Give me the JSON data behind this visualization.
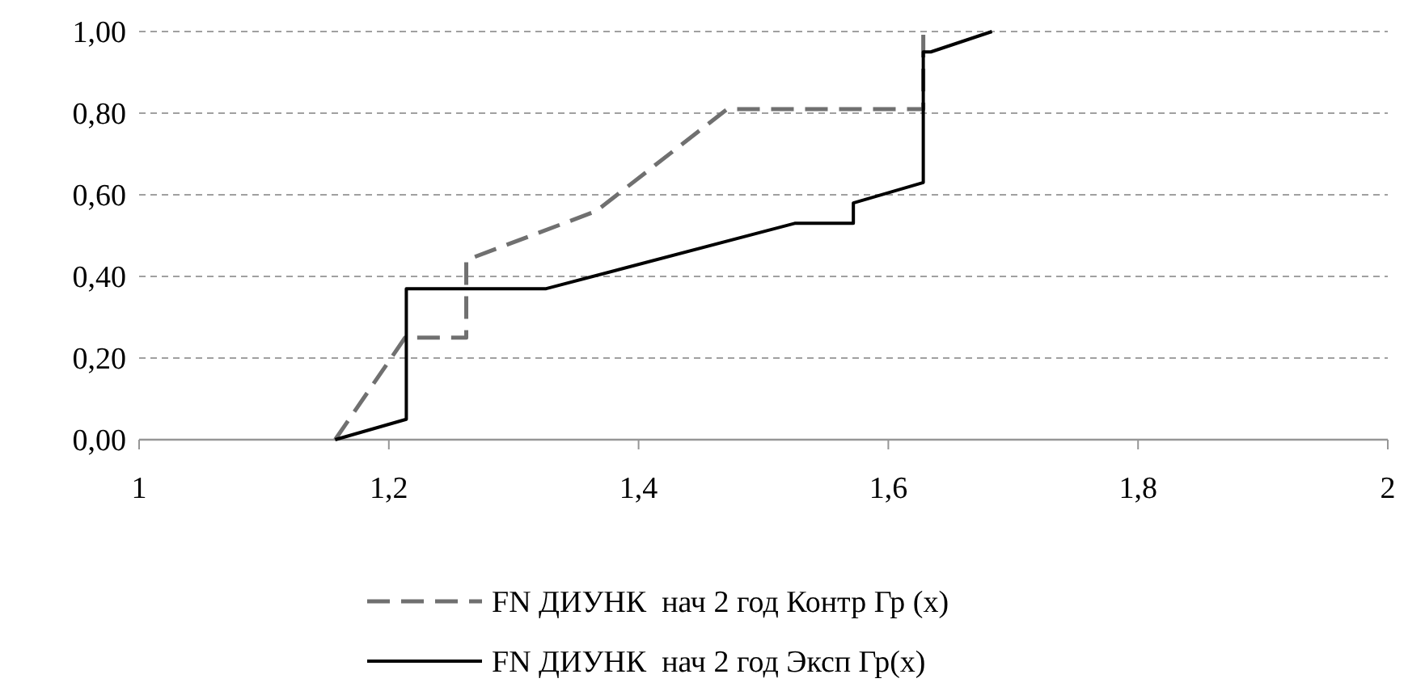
{
  "chart_data": {
    "type": "line",
    "xlim": [
      1,
      2
    ],
    "ylim": [
      0,
      1
    ],
    "xticks": [
      {
        "value": 1,
        "label": "1"
      },
      {
        "value": 1.2,
        "label": "1,2"
      },
      {
        "value": 1.4,
        "label": "1,4"
      },
      {
        "value": 1.6,
        "label": "1,6"
      },
      {
        "value": 1.8,
        "label": "1,8"
      },
      {
        "value": 2,
        "label": "2"
      }
    ],
    "yticks": [
      {
        "value": 0,
        "label": "0,00"
      },
      {
        "value": 0.2,
        "label": "0,20"
      },
      {
        "value": 0.4,
        "label": "0,40"
      },
      {
        "value": 0.6,
        "label": "0,60"
      },
      {
        "value": 0.8,
        "label": "0,80"
      },
      {
        "value": 1,
        "label": "1,00"
      }
    ],
    "grid": "y",
    "legend": "bottom",
    "series": [
      {
        "name": "FN ДИУНК  нач 2 год Контр Гр (x)",
        "color": "#707070",
        "line_style": "dashed",
        "x": [
          1.157,
          1.213,
          1.262,
          1.262,
          1.366,
          1.471,
          1.628,
          1.628
        ],
        "values": [
          0,
          0.25,
          0.25,
          0.44,
          0.56,
          0.81,
          0.81,
          1.0
        ]
      },
      {
        "name": "FN ДИУНК  нач 2 год Эксп Гр(x)",
        "color": "#000000",
        "line_style": "solid",
        "x": [
          1.157,
          1.214,
          1.214,
          1.326,
          1.525,
          1.572,
          1.572,
          1.628,
          1.628,
          1.634,
          1.683
        ],
        "values": [
          0,
          0.05,
          0.37,
          0.37,
          0.53,
          0.53,
          0.58,
          0.63,
          0.95,
          0.95,
          1.0
        ]
      }
    ]
  }
}
